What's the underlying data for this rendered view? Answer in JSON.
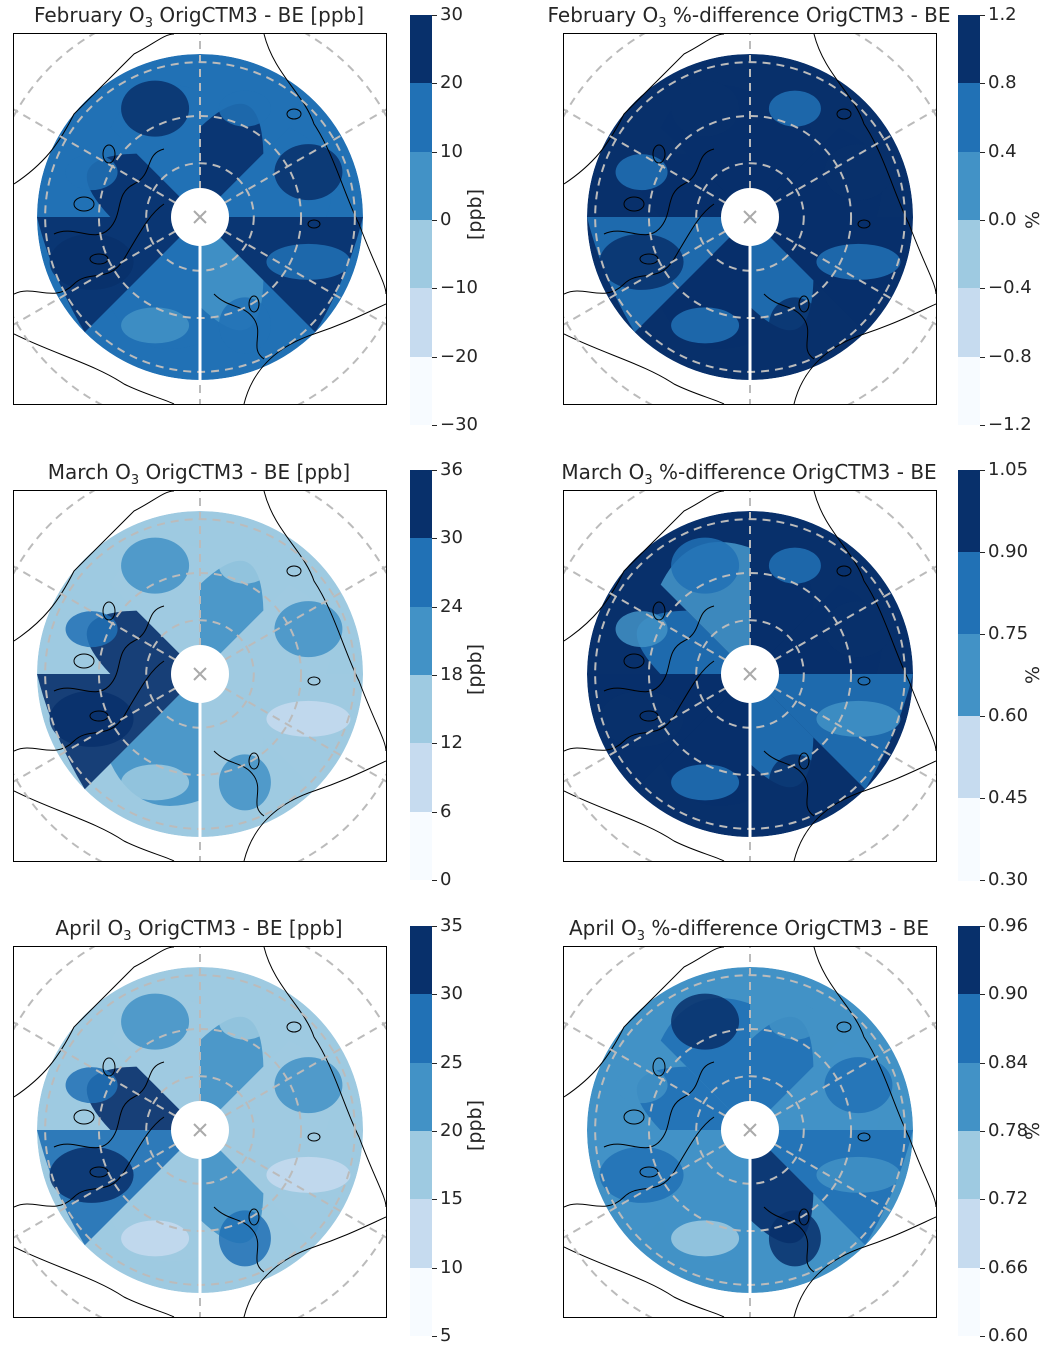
{
  "colors": [
    "#f7fbff",
    "#c6dbef",
    "#9ecae1",
    "#4292c6",
    "#2171b5",
    "#08306b"
  ],
  "panels": [
    {
      "id": "feb-ppb",
      "title_pre": "February O",
      "title_sub": "3",
      "title_post": " OrigCTM3 - BE [ppb]",
      "ticks": [
        "30",
        "20",
        "10",
        "0",
        "−10",
        "−20",
        "−30"
      ],
      "cbar_label": "[ppb]",
      "levels": [
        5,
        4,
        5,
        3,
        4,
        5,
        5,
        4
      ],
      "dominant_level": 4
    },
    {
      "id": "feb-pct",
      "title_pre": "February O",
      "title_sub": "3",
      "title_post": " %-difference OrigCTM3 - BE",
      "ticks": [
        "1.2",
        "0.8",
        "0.4",
        "0.0",
        "−0.4",
        "−0.8",
        "−1.2"
      ],
      "cbar_label": "%",
      "levels": [
        5,
        5,
        5,
        4,
        5,
        4,
        5,
        5
      ],
      "dominant_level": 5
    },
    {
      "id": "mar-ppb",
      "title_pre": "March O",
      "title_sub": "3",
      "title_post": " OrigCTM3 - BE [ppb]",
      "ticks": [
        "36",
        "30",
        "24",
        "18",
        "12",
        "6",
        "0"
      ],
      "cbar_label": "[ppb]",
      "levels": [
        3,
        2,
        2,
        2,
        3,
        5,
        5,
        2
      ],
      "dominant_level": 2
    },
    {
      "id": "mar-pct",
      "title_pre": "March O",
      "title_sub": "3",
      "title_post": " %-difference OrigCTM3 - BE",
      "ticks": [
        "1.05",
        "0.90",
        "0.75",
        "0.60",
        "0.45",
        "0.30"
      ],
      "cbar_label": "%",
      "levels": [
        5,
        5,
        4,
        4,
        5,
        5,
        4,
        3
      ],
      "dominant_level": 5
    },
    {
      "id": "apr-ppb",
      "title_pre": "April O",
      "title_sub": "3",
      "title_post": " OrigCTM3 - BE [ppb]",
      "ticks": [
        "35",
        "30",
        "25",
        "20",
        "15",
        "10",
        "5"
      ],
      "cbar_label": "[ppb]",
      "levels": [
        3,
        2,
        2,
        3,
        2,
        4,
        5,
        2
      ],
      "dominant_level": 2
    },
    {
      "id": "apr-pct",
      "title_pre": "April O",
      "title_sub": "3",
      "title_post": " %-difference OrigCTM3 - BE",
      "ticks": [
        "0.96",
        "0.90",
        "0.84",
        "0.78",
        "0.72",
        "0.66",
        "0.60"
      ],
      "cbar_label": "%",
      "levels": [
        4,
        3,
        4,
        5,
        3,
        3,
        4,
        4
      ],
      "dominant_level": 3
    }
  ]
}
